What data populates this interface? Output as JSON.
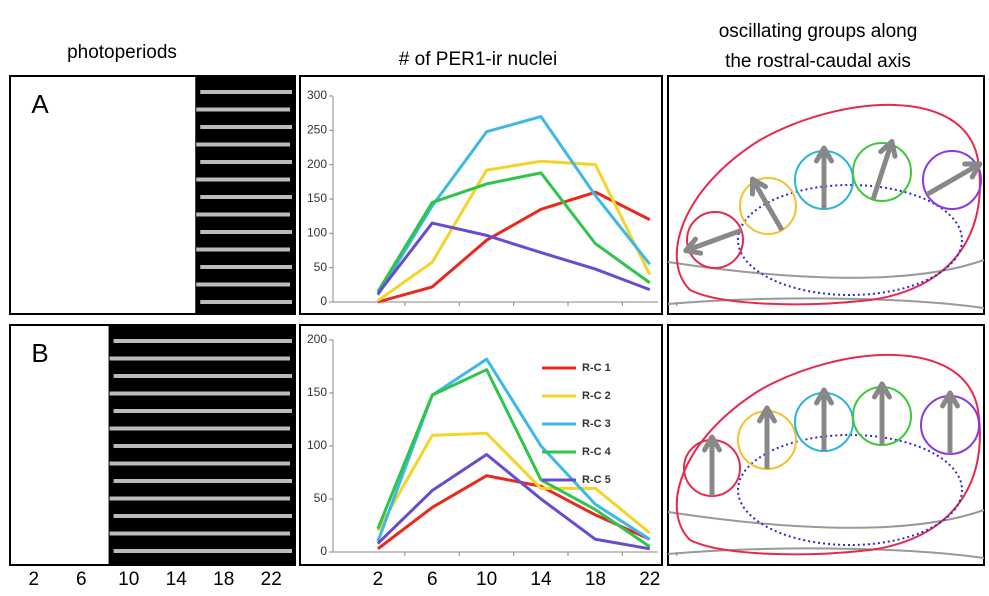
{
  "headers": {
    "photoperiods": "photoperiods",
    "nuclei": "# of PER1-ir nuclei",
    "groups": [
      "oscillating groups along",
      "the rostral-caudal axis"
    ]
  },
  "photoperiods": {
    "xlim": [
      0,
      24
    ],
    "xticks": [
      2,
      6,
      10,
      14,
      18,
      22
    ],
    "panels": [
      {
        "label": "A",
        "dark": [
          15.6,
          24
        ]
      },
      {
        "label": "B",
        "dark": [
          8.3,
          24
        ]
      }
    ]
  },
  "chart_data": [
    {
      "type": "line",
      "x": [
        2,
        6,
        10,
        14,
        18,
        22
      ],
      "xlim": [
        -1.3,
        22.9
      ],
      "ylim": [
        0,
        300
      ],
      "yticks": [
        0,
        50,
        100,
        150,
        200,
        250,
        300
      ],
      "series": [
        {
          "color": "#e8291c",
          "values": [
            0,
            22,
            90,
            135,
            160,
            120
          ]
        },
        {
          "color": "#f5d327",
          "values": [
            2,
            58,
            192,
            205,
            200,
            40
          ]
        },
        {
          "color": "#3db8e8",
          "values": [
            10,
            140,
            248,
            270,
            155,
            55
          ]
        },
        {
          "color": "#2fc44a",
          "values": [
            15,
            145,
            172,
            188,
            85,
            28
          ]
        },
        {
          "color": "#6a4ad0",
          "values": [
            12,
            115,
            97,
            72,
            48,
            18
          ]
        }
      ]
    },
    {
      "type": "line",
      "x": [
        2,
        6,
        10,
        14,
        18,
        22
      ],
      "xlim": [
        -1.3,
        22.9
      ],
      "xticks": [
        2,
        6,
        10,
        14,
        18,
        22
      ],
      "ylim": [
        0,
        200
      ],
      "yticks": [
        0,
        50,
        100,
        150,
        200
      ],
      "legend": "upper right",
      "series": [
        {
          "name": "R-C 1",
          "color": "#e8291c",
          "values": [
            3,
            42,
            72,
            62,
            35,
            12
          ]
        },
        {
          "name": "R-C 2",
          "color": "#f5d327",
          "values": [
            20,
            110,
            112,
            60,
            60,
            18
          ]
        },
        {
          "name": "R-C 3",
          "color": "#3db8e8",
          "values": [
            10,
            148,
            182,
            100,
            45,
            12
          ]
        },
        {
          "name": "R-C 4",
          "color": "#2fc44a",
          "values": [
            22,
            148,
            172,
            68,
            40,
            5
          ]
        },
        {
          "name": "R-C 5",
          "color": "#6a4ad0",
          "values": [
            8,
            58,
            92,
            50,
            12,
            3
          ]
        }
      ]
    }
  ]
}
